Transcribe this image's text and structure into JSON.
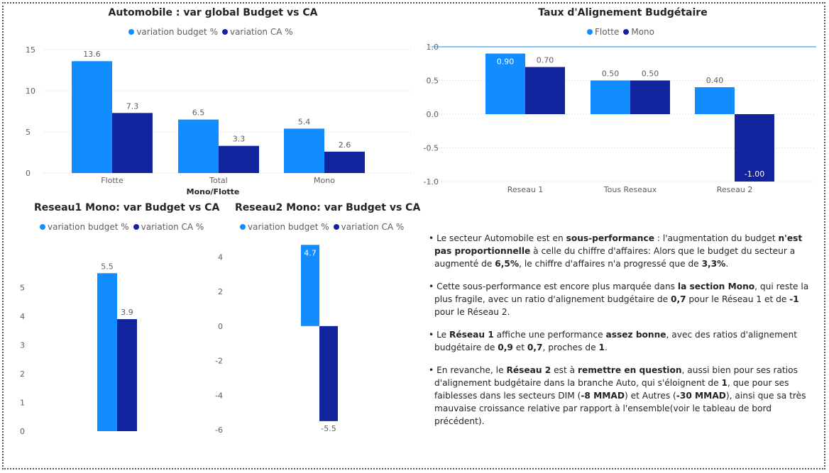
{
  "colors": {
    "series1": "#118DFF",
    "series2": "#12239E",
    "grid": "#c8c6c4",
    "text": "#605e5c"
  },
  "chart_data": [
    {
      "id": "c1",
      "type": "bar",
      "title": "Automobile : var global Budget vs CA",
      "xlabel": "Mono/Flotte",
      "ylabel": "",
      "categories": [
        "Flotte",
        "Total",
        "Mono"
      ],
      "series": [
        {
          "name": "variation budget %",
          "values": [
            13.6,
            6.5,
            5.4
          ]
        },
        {
          "name": "variation CA %",
          "values": [
            7.3,
            3.3,
            2.6
          ]
        }
      ],
      "ylim": [
        0,
        15
      ],
      "yticks": [
        0,
        5,
        10,
        15
      ],
      "labelFormat": 1,
      "grid": true,
      "legend": "top-center"
    },
    {
      "id": "c2",
      "type": "bar",
      "title": "Taux d'Alignement Budgétaire",
      "xlabel": "",
      "ylabel": "",
      "categories": [
        "Reseau 1",
        "Tous Reseaux",
        "Reseau 2"
      ],
      "series": [
        {
          "name": "Flotte",
          "values": [
            0.9,
            0.5,
            0.4
          ]
        },
        {
          "name": "Mono",
          "values": [
            0.7,
            0.5,
            -1.0
          ]
        }
      ],
      "ylim": [
        -1.0,
        1.0
      ],
      "yticks": [
        -1.0,
        -0.5,
        0.0,
        0.5,
        1.0
      ],
      "tickFormat": 1,
      "labelFormat": 2,
      "referenceLine": 1.0,
      "grid": true,
      "legend": "top-center"
    },
    {
      "id": "c3",
      "type": "bar",
      "title": "Reseau1 Mono: var Budget vs CA",
      "xlabel": "",
      "ylabel": "",
      "categories": [
        ""
      ],
      "series": [
        {
          "name": "variation budget %",
          "values": [
            5.5
          ]
        },
        {
          "name": "variation CA %",
          "values": [
            3.9
          ]
        }
      ],
      "ylim": [
        0,
        6
      ],
      "yticks": [
        0,
        1,
        2,
        3,
        4,
        5
      ],
      "labelFormat": 1,
      "grid": false,
      "legend": "top-center"
    },
    {
      "id": "c4",
      "type": "bar",
      "title": "Reseau2 Mono: var Budget vs CA",
      "xlabel": "",
      "ylabel": "",
      "categories": [
        ""
      ],
      "series": [
        {
          "name": "variation budget %",
          "values": [
            4.7
          ]
        },
        {
          "name": "variation CA %",
          "values": [
            -5.5
          ]
        }
      ],
      "ylim": [
        -6,
        5
      ],
      "yticks": [
        -6,
        -4,
        -2,
        0,
        2,
        4
      ],
      "labelFormat": 1,
      "grid": false,
      "legend": "top-center"
    }
  ],
  "notes": [
    [
      {
        "t": "• Le secteur Automobile est en ",
        "b": false
      },
      {
        "t": "sous-performance",
        "b": true
      },
      {
        "t": " : l'augmentation du budget ",
        "b": false
      },
      {
        "t": "n'est pas proportionnelle",
        "b": true
      },
      {
        "t": " à celle du chiffre d'affaires: Alors que le budget du secteur a augmenté de ",
        "b": false
      },
      {
        "t": "6,5%",
        "b": true
      },
      {
        "t": ", le chiffre d'affaires n'a progressé que de ",
        "b": false
      },
      {
        "t": "3,3%",
        "b": true
      },
      {
        "t": ".",
        "b": false
      }
    ],
    [
      {
        "t": "• Cette sous-performance est encore plus marquée dans ",
        "b": false
      },
      {
        "t": "la section Mono",
        "b": true
      },
      {
        "t": ", qui reste la plus fragile, avec un ratio d'alignement budgétaire de ",
        "b": false
      },
      {
        "t": "0,7",
        "b": true
      },
      {
        "t": " pour le Réseau 1 et de ",
        "b": false
      },
      {
        "t": "-1",
        "b": true
      },
      {
        "t": " pour le Réseau 2.",
        "b": false
      }
    ],
    [
      {
        "t": "• Le ",
        "b": false
      },
      {
        "t": "Réseau 1",
        "b": true
      },
      {
        "t": " affiche une performance ",
        "b": false
      },
      {
        "t": "assez bonne",
        "b": true
      },
      {
        "t": ", avec des ratios d'alignement budgétaire de ",
        "b": false
      },
      {
        "t": "0,9",
        "b": true
      },
      {
        "t": " et ",
        "b": false
      },
      {
        "t": "0,7",
        "b": true
      },
      {
        "t": ", proches de ",
        "b": false
      },
      {
        "t": "1",
        "b": true
      },
      {
        "t": ".",
        "b": false
      }
    ],
    [
      {
        "t": "• En revanche, le ",
        "b": false
      },
      {
        "t": "Réseau 2",
        "b": true
      },
      {
        "t": " est à ",
        "b": false
      },
      {
        "t": "remettre en question",
        "b": true
      },
      {
        "t": ", aussi bien pour ses ratios d'alignement budgétaire dans la branche Auto, qui s'éloignent de ",
        "b": false
      },
      {
        "t": "1",
        "b": true
      },
      {
        "t": ", que pour ses faiblesses dans les secteurs DIM (",
        "b": false
      },
      {
        "t": "-8 MMAD",
        "b": true
      },
      {
        "t": ") et Autres (",
        "b": false
      },
      {
        "t": "-30 MMAD",
        "b": true
      },
      {
        "t": "), ainsi que sa très mauvaise croissance relative par rapport à l'ensemble(voir le tableau de bord précédent).",
        "b": false
      }
    ]
  ]
}
